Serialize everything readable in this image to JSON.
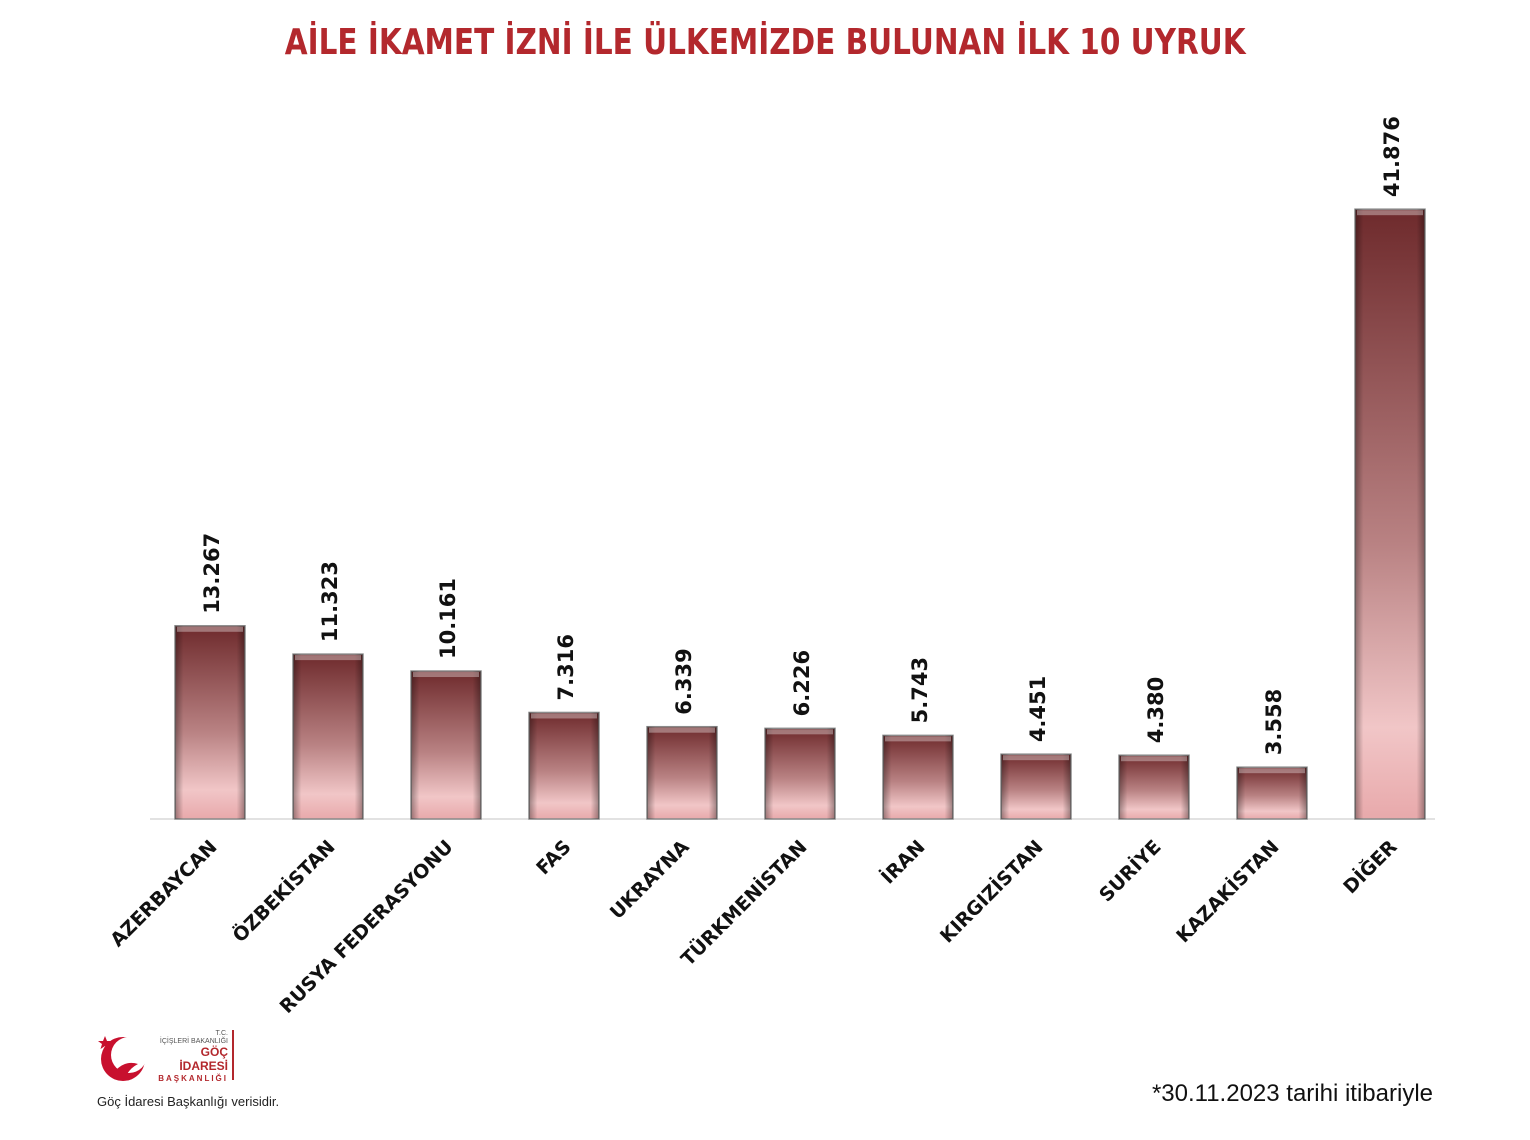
{
  "title": "AİLE İKAMET İZNİ İLE ÜLKEMİZDE BULUNAN İLK 10 UYRUK",
  "footer": {
    "source": "Göç İdaresi Başkanlığı verisidir.",
    "date_note": "*30.11.2023 tarihi itibariyle"
  },
  "logo": {
    "line1": "T.C.",
    "line2": "İÇİŞLERİ BAKANLIĞI",
    "line3": "GÖÇ İDARESİ",
    "line4": "BAŞKANLIĞI",
    "icon": "crescent-star-bird-logo"
  },
  "colors": {
    "title": "#b3282d",
    "bar_top": "#6e2a2c",
    "bar_bottom": "#f2c2c3"
  },
  "chart_data": {
    "type": "bar",
    "title": "AİLE İKAMET İZNİ İLE ÜLKEMİZDE BULUNAN İLK 10 UYRUK",
    "xlabel": "",
    "ylabel": "",
    "categories": [
      "AZERBAYCAN",
      "ÖZBEKİSTAN",
      "RUSYA FEDERASYONU",
      "FAS",
      "UKRAYNA",
      "TÜRKMENİSTAN",
      "İRAN",
      "KIRGIZİSTAN",
      "SURİYE",
      "KAZAKİSTAN",
      "DİĞER"
    ],
    "values": [
      13267,
      11323,
      10161,
      7316,
      6339,
      6226,
      5743,
      4451,
      4380,
      3558,
      41876
    ],
    "value_labels": [
      "13.267",
      "11.323",
      "10.161",
      "7.316",
      "6.339",
      "6.226",
      "5.743",
      "4.451",
      "4.380",
      "3.558",
      "41.876"
    ],
    "ylim": [
      0,
      48000
    ],
    "grid": false,
    "legend": "none"
  }
}
